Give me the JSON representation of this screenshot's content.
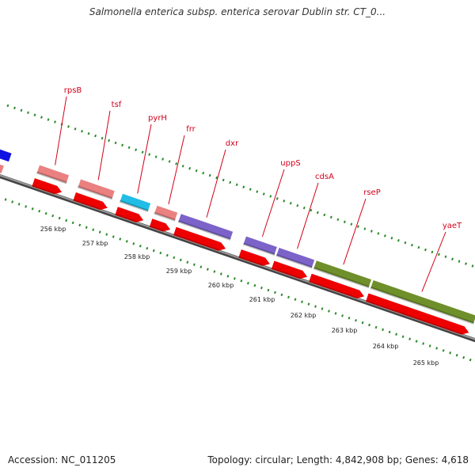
{
  "title": "Salmonella enterica subsp. enterica serovar Dublin str. CT_0...",
  "accession": "Accession: NC_011205",
  "summary": "Topology: circular; Length: 4,842,908 bp; Genes: 4,618",
  "colors": {
    "backbone": "#7a7a7a",
    "tick": "#2b8a2b",
    "label": "#d4001a",
    "cds_arrow": "#ee0000"
  },
  "genes": [
    {
      "name": "rpsB",
      "color": "#ea8080"
    },
    {
      "name": "tsf",
      "color": "#ea8080"
    },
    {
      "name": "pyrH",
      "color": "#22bde6"
    },
    {
      "name": "frr",
      "color": "#ea8080"
    },
    {
      "name": "dxr",
      "color": "#7b63c9"
    },
    {
      "name": "uppS",
      "color": "#7b63c9"
    },
    {
      "name": "cdsA",
      "color": "#7b63c9"
    },
    {
      "name": "rseP",
      "color": "#6e8f2a"
    },
    {
      "name": "yaeT",
      "color": "#6e8f2a"
    }
  ],
  "scale_labels": [
    "256 kbp",
    "257 kbp",
    "258 kbp",
    "259 kbp",
    "260 kbp",
    "261 kbp",
    "262 kbp",
    "263 kbp",
    "264 kbp",
    "265 kbp"
  ]
}
